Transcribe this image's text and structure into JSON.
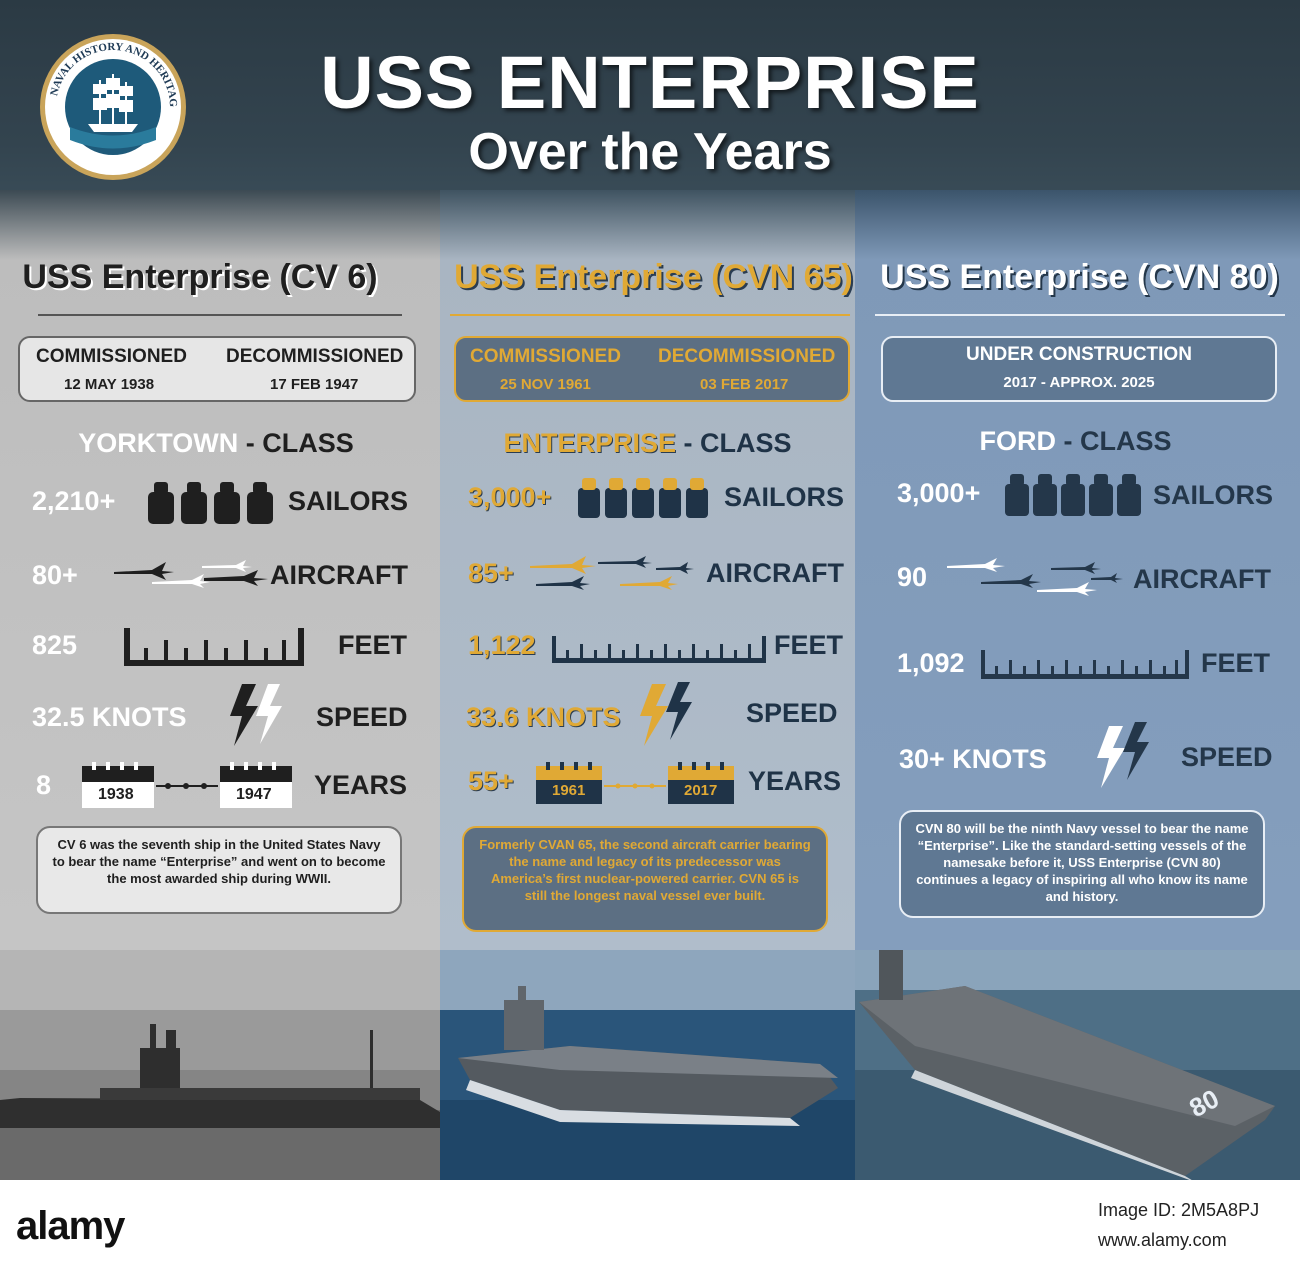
{
  "title": {
    "main": "USS ENTERPRISE",
    "sub": "Over the Years",
    "seal_text": "NAVAL HISTORY AND HERITAGE COMMAND"
  },
  "columns": [
    {
      "title": "USS Enterprise (CV 6)",
      "dates": {
        "label1": "COMMISSIONED",
        "val1": "12 MAY 1938",
        "label2": "DECOMMISSIONED",
        "val2": "17 FEB 1947"
      },
      "class_name": "YORKTOWN",
      "class_suffix": " - CLASS",
      "sailors": "2,210+",
      "sailors_label": "SAILORS",
      "aircraft": "80+",
      "aircraft_label": "AIRCRAFT",
      "feet": "825",
      "feet_label": "FEET",
      "speed": "32.5 KNOTS",
      "speed_label": "SPEED",
      "years": "8",
      "years_label": "YEARS",
      "year_start": "1938",
      "year_end": "1947",
      "description": "CV 6 was the seventh ship in the United States Navy to bear the name “Enterprise” and went on to become the most awarded ship during WWII."
    },
    {
      "title": "USS Enterprise (CVN 65)",
      "dates": {
        "label1": "COMMISSIONED",
        "val1": "25 NOV 1961",
        "label2": "DECOMMISSIONED",
        "val2": "03 FEB 2017"
      },
      "class_name": "ENTERPRISE",
      "class_suffix": " - CLASS",
      "sailors": "3,000+",
      "sailors_label": "SAILORS",
      "aircraft": "85+",
      "aircraft_label": "AIRCRAFT",
      "feet": "1,122",
      "feet_label": "FEET",
      "speed": "33.6 KNOTS",
      "speed_label": "SPEED",
      "years": "55+",
      "years_label": "YEARS",
      "year_start": "1961",
      "year_end": "2017",
      "description": "Formerly CVAN 65, the second aircraft carrier bearing the name and legacy of its predecessor was America’s first nuclear-powered carrier. CVN 65 is still the longest naval vessel ever built."
    },
    {
      "title": "USS Enterprise (CVN 80)",
      "dates": {
        "label1": "UNDER CONSTRUCTION",
        "val1": "2017 - APPROX. 2025"
      },
      "class_name": "FORD",
      "class_suffix": " - CLASS",
      "sailors": "3,000+",
      "sailors_label": "SAILORS",
      "aircraft": "90",
      "aircraft_label": "AIRCRAFT",
      "feet": "1,092",
      "feet_label": "FEET",
      "speed": "30+ KNOTS",
      "speed_label": "SPEED",
      "description": "CVN 80 will be the ninth Navy vessel to bear the name “Enterprise”. Like the standard-setting vessels of the namesake before it, USS Enterprise (CVN 80) continues a legacy of inspiring all who know its name and history.",
      "hull_number": "80"
    }
  ],
  "footer": {
    "brand": "alamy",
    "image_id": "Image ID: 2M5A8PJ",
    "url": "www.alamy.com"
  },
  "colors": {
    "dark_text": "#1f1f1f",
    "navy_text": "#1f3347",
    "gold": "#e0a935",
    "white": "#ffffff"
  }
}
